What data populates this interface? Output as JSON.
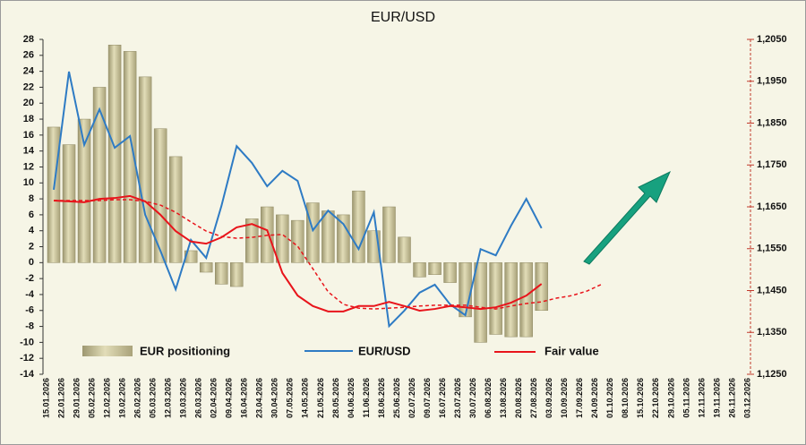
{
  "chart_data": {
    "type": "combo",
    "title": "EUR/USD",
    "categories": [
      "15.01.2026",
      "22.01.2026",
      "29.01.2026",
      "05.02.2026",
      "12.02.2026",
      "19.02.2026",
      "26.02.2026",
      "05.03.2026",
      "12.03.2026",
      "19.03.2026",
      "26.03.2026",
      "02.04.2026",
      "09.04.2026",
      "16.04.2026",
      "23.04.2026",
      "30.04.2026",
      "07.05.2026",
      "14.05.2026",
      "21.05.2026",
      "28.05.2026",
      "04.06.2026",
      "11.06.2026",
      "18.06.2026",
      "25.06.2026",
      "02.07.2026",
      "09.07.2026",
      "16.07.2026",
      "23.07.2026",
      "30.07.2026",
      "06.08.2026",
      "13.08.2026",
      "20.08.2026",
      "27.08.2026",
      "03.09.2026",
      "10.09.2026",
      "17.09.2026",
      "24.09.2026",
      "01.10.2026",
      "08.10.2026",
      "15.10.2026",
      "22.10.2026",
      "29.10.2026",
      "05.11.2026",
      "12.11.2026",
      "19.11.2026",
      "26.11.2026",
      "03.12.2026"
    ],
    "series": [
      {
        "name": "EUR positioning",
        "type": "bar",
        "color": "#c9c49b",
        "values": [
          17,
          14.8,
          18,
          22,
          27.3,
          26.5,
          23.3,
          16.8,
          13.3,
          1.5,
          -1.2,
          -2.7,
          -3,
          5.5,
          7,
          6,
          5.3,
          7.5,
          6.5,
          6,
          9,
          4,
          7,
          3.2,
          -1.8,
          -1.5,
          -2.5,
          -6.8,
          -10,
          -9,
          -9.3,
          -9.3,
          -6,
          null,
          null,
          null,
          null,
          null,
          null,
          null,
          null,
          null,
          null,
          null,
          null,
          null,
          null
        ]
      },
      {
        "name": "EUR/USD",
        "type": "line",
        "axis": "y2",
        "color": "#2e7bc4",
        "values": [
          1.1691,
          1.1973,
          1.1798,
          1.1883,
          1.1791,
          1.1819,
          1.1631,
          1.1545,
          1.1453,
          1.1571,
          1.1528,
          1.1652,
          1.1795,
          1.1755,
          1.1699,
          1.1736,
          1.1712,
          1.1594,
          1.1641,
          1.1609,
          1.1549,
          1.1637,
          1.1365,
          1.1402,
          1.1445,
          1.1464,
          1.1417,
          1.1391,
          1.1549,
          1.1534,
          1.1605,
          1.1669,
          1.1599,
          null,
          null,
          null,
          null,
          null,
          null,
          null,
          null,
          null,
          null,
          null,
          null,
          null,
          null
        ]
      },
      {
        "name": "Fair value",
        "type": "line",
        "axis": "y2",
        "color": "#e8141b",
        "values": [
          1.1665,
          1.1663,
          1.1661,
          1.1669,
          1.1671,
          1.1676,
          1.1663,
          1.1631,
          1.1592,
          1.1567,
          1.1562,
          1.1577,
          1.1601,
          1.1609,
          1.1594,
          1.1492,
          1.1438,
          1.1413,
          1.14,
          1.14,
          1.1413,
          1.1413,
          1.1423,
          1.1413,
          1.1402,
          1.1406,
          1.1413,
          1.141,
          1.1406,
          1.141,
          1.1421,
          1.1438,
          1.1466,
          null,
          null,
          null,
          null,
          null,
          null,
          null,
          null,
          null,
          null,
          null,
          null,
          null,
          null
        ]
      },
      {
        "type": "line",
        "axis": "y2",
        "color": "#e8141b",
        "dash": true,
        "values": [
          1.1665,
          1.1665,
          1.1665,
          1.1665,
          1.1667,
          1.1667,
          1.1663,
          1.1654,
          1.1637,
          1.1614,
          1.1592,
          1.1579,
          1.1575,
          1.1577,
          1.1582,
          1.1584,
          1.1556,
          1.1502,
          1.1447,
          1.1417,
          1.1408,
          1.1406,
          1.1408,
          1.141,
          1.1413,
          1.1415,
          1.1415,
          1.1415,
          1.141,
          1.1406,
          1.1413,
          1.1419,
          1.1423,
          1.1432,
          1.1438,
          1.1449,
          1.1466,
          null,
          null,
          null,
          null,
          null,
          null,
          null,
          null,
          null,
          null
        ]
      }
    ],
    "ylim": [
      -14,
      28
    ],
    "yticks": [
      -14,
      -12,
      -10,
      -8,
      -6,
      -4,
      -2,
      0,
      2,
      4,
      6,
      8,
      10,
      12,
      14,
      16,
      18,
      20,
      22,
      24,
      26,
      28
    ],
    "y2lim": [
      1.125,
      1.205
    ],
    "y2ticks": [
      {
        "value": 1.125,
        "label": "1,1250"
      },
      {
        "value": 1.135,
        "label": "1,1350"
      },
      {
        "value": 1.145,
        "label": "1,1450"
      },
      {
        "value": 1.155,
        "label": "1,1550"
      },
      {
        "value": 1.165,
        "label": "1,1650"
      },
      {
        "value": 1.175,
        "label": "1,1750"
      },
      {
        "value": 1.185,
        "label": "1,1850"
      },
      {
        "value": 1.195,
        "label": "1,1950"
      },
      {
        "value": 1.205,
        "label": "1,2050"
      }
    ]
  }
}
